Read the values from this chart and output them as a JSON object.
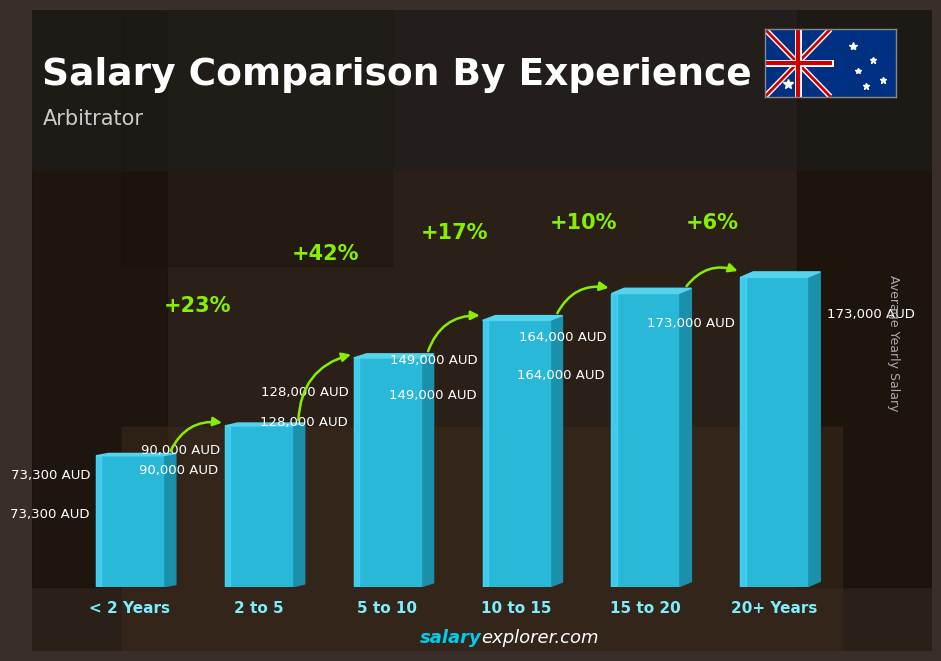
{
  "title": "Salary Comparison By Experience",
  "subtitle": "Arbitrator",
  "categories": [
    "< 2 Years",
    "2 to 5",
    "5 to 10",
    "10 to 15",
    "15 to 20",
    "20+ Years"
  ],
  "values": [
    73300,
    90000,
    128000,
    149000,
    164000,
    173000
  ],
  "value_labels": [
    "73,300 AUD",
    "90,000 AUD",
    "128,000 AUD",
    "149,000 AUD",
    "164,000 AUD",
    "173,000 AUD"
  ],
  "pct_changes": [
    "+23%",
    "+42%",
    "+17%",
    "+10%",
    "+6%"
  ],
  "bar_face_color": "#29B8D8",
  "bar_top_color": "#55D4EE",
  "bar_side_color": "#1A90AA",
  "bg_color": "#3a2e2a",
  "ylabel": "Average Yearly Salary",
  "footer_salary": "salary",
  "footer_rest": "explorer.com",
  "title_fontsize": 27,
  "subtitle_fontsize": 15,
  "value_label_fontsize": 9.5,
  "pct_fontsize": 14,
  "cat_fontsize": 11,
  "ylabel_fontsize": 9,
  "footer_fontsize": 13,
  "green_color": "#88EE00",
  "white": "#ffffff",
  "cyan_label": "#7EEEFF"
}
